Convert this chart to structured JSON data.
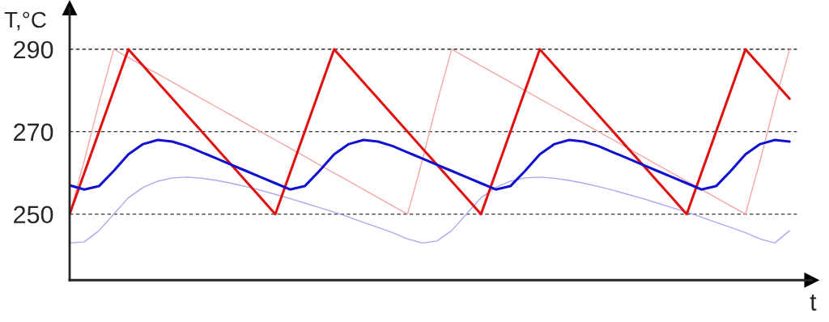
{
  "chart_data": {
    "type": "line",
    "xlabel": "t",
    "ylabel": "T,°C",
    "categories": [
      null,
      null,
      null,
      null,
      null,
      null,
      null,
      null,
      null,
      null,
      null,
      null,
      null,
      null,
      null,
      null,
      null,
      null,
      null,
      null,
      null,
      null,
      null,
      null,
      null,
      null,
      null,
      null,
      null,
      null,
      null,
      null,
      null,
      null,
      null,
      null,
      null,
      null,
      null,
      null,
      null,
      null,
      null,
      null,
      null,
      null,
      null,
      null,
      null,
      null
    ],
    "series": [
      {
        "color": "#f4a6a6",
        "values": [
          250,
          263,
          277,
          290,
          288,
          286,
          284,
          282,
          280,
          278,
          276,
          274,
          272,
          270,
          268,
          266,
          264,
          262,
          260,
          258,
          256,
          254,
          252,
          250,
          263,
          277,
          290,
          288,
          286,
          284,
          282,
          280,
          278,
          276,
          274,
          272,
          270,
          268,
          266,
          264,
          262,
          260,
          258,
          256,
          254,
          252,
          250,
          263,
          277,
          290
        ]
      },
      {
        "color": "#a9a9f0",
        "values": [
          243,
          243.3,
          246,
          250,
          254,
          256.5,
          258,
          258.8,
          259,
          258.7,
          258.2,
          257.5,
          256.7,
          255.8,
          254.8,
          253.8,
          252.7,
          251.6,
          250.5,
          249.3,
          248,
          246.8,
          245.5,
          244,
          243,
          243.5,
          246,
          250,
          254,
          256.5,
          258,
          258.8,
          259,
          258.7,
          258.2,
          257.5,
          256.7,
          255.8,
          254.8,
          253.8,
          252.7,
          251.6,
          250.5,
          249.3,
          248,
          246.8,
          245.5,
          244,
          243,
          246
        ]
      },
      {
        "color": "#e01010",
        "values": [
          250,
          260,
          270,
          280,
          290,
          286,
          282,
          278,
          274,
          270,
          266,
          262,
          258,
          254,
          250,
          260,
          270,
          280,
          290,
          286,
          282,
          278,
          274,
          270,
          266,
          262,
          258,
          254,
          250,
          260,
          270,
          280,
          290,
          286,
          282,
          278,
          274,
          270,
          266,
          262,
          258,
          254,
          250,
          260,
          270,
          280,
          290,
          286,
          282,
          278
        ]
      },
      {
        "color": "#1010d0",
        "values": [
          257,
          256,
          256.8,
          260.5,
          264.5,
          267,
          268,
          267.6,
          266.5,
          265,
          263.5,
          262,
          260.5,
          259,
          257.5,
          256,
          256.8,
          260.5,
          264.5,
          267,
          268,
          267.6,
          266.5,
          265,
          263.5,
          262,
          260.5,
          259,
          257.5,
          256,
          256.8,
          260.5,
          264.5,
          267,
          268,
          267.6,
          266.5,
          265,
          263.5,
          262,
          260.5,
          259,
          257.5,
          256,
          256.8,
          260.5,
          264.5,
          267,
          268,
          267.6
        ]
      }
    ],
    "ylim": [
      234,
      300
    ],
    "yticks": [
      250,
      270,
      290
    ],
    "grid": "y",
    "tick_labels": "y",
    "line_style": "solid",
    "marker": "none"
  }
}
